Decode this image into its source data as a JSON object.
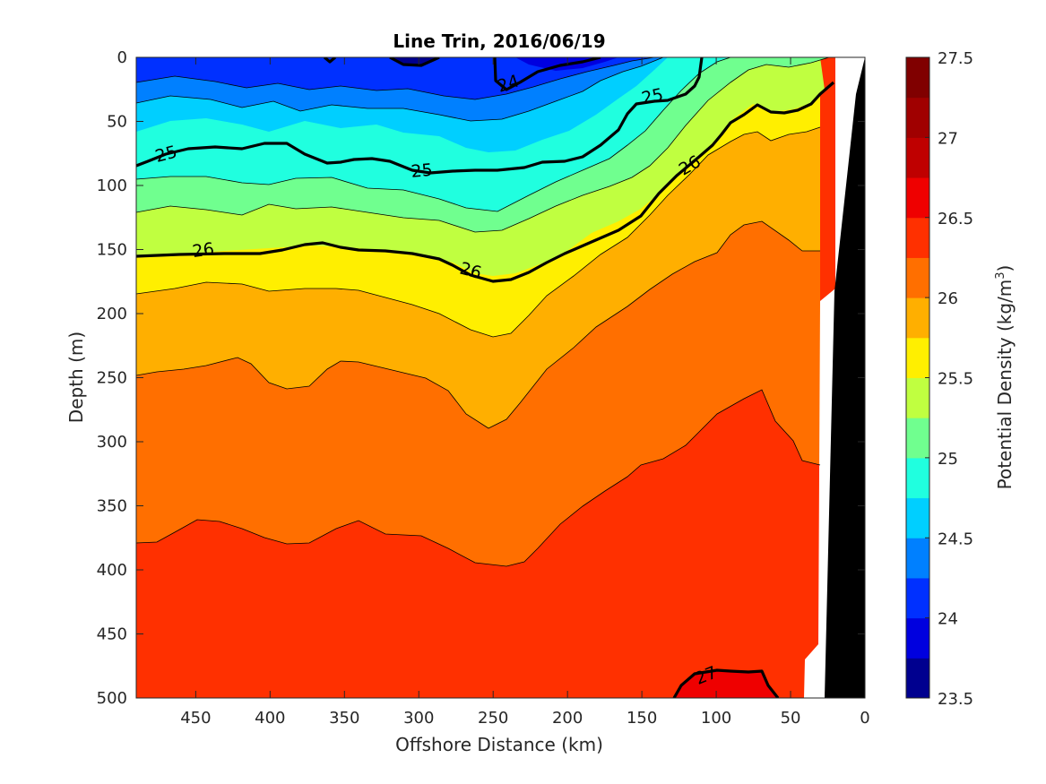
{
  "chart_data": {
    "type": "contour",
    "title": "Line Trin, 2016/06/19",
    "xlabel": "Offshore Distance (km)",
    "ylabel": "Depth (m)",
    "colorbar_label": "Potential Density (kg/m³)",
    "colorbar_label_text": "Potential Density (kg/m",
    "colorbar_label_sup": "3",
    "colorbar_label_close": ")",
    "xlim": [
      490,
      0
    ],
    "ylim": [
      0,
      500
    ],
    "x_reversed": true,
    "y_reversed": true,
    "xticks": [
      "450",
      "400",
      "350",
      "300",
      "250",
      "200",
      "150",
      "100",
      "50",
      "0"
    ],
    "xtick_values": [
      450,
      400,
      350,
      300,
      250,
      200,
      150,
      100,
      50,
      0
    ],
    "yticks": [
      "0",
      "50",
      "100",
      "150",
      "200",
      "250",
      "300",
      "350",
      "400",
      "450",
      "500"
    ],
    "ytick_values": [
      0,
      50,
      100,
      150,
      200,
      250,
      300,
      350,
      400,
      450,
      500
    ],
    "colorbar": {
      "min": 23.5,
      "max": 27.5,
      "step": 0.25,
      "ticks": [
        "23.5",
        "24",
        "24.5",
        "25",
        "25.5",
        "26",
        "26.5",
        "27",
        "27.5"
      ],
      "tick_values": [
        23.5,
        24,
        24.5,
        25,
        25.5,
        26,
        26.5,
        27,
        27.5
      ],
      "colormap": "jet",
      "colors": [
        "#00008F",
        "#0000DF",
        "#0030FF",
        "#0080FF",
        "#00CFFF",
        "#20FFDF",
        "#70FF8F",
        "#C0FF40",
        "#FFEF00",
        "#FFAF00",
        "#FF6F00",
        "#FF3000",
        "#EF0000",
        "#BF0000",
        "#A00000",
        "#800000"
      ]
    },
    "contour_labels": [
      {
        "text": "24",
        "x": 240,
        "y": 20
      },
      {
        "text": "25",
        "x": 143,
        "y": 30
      },
      {
        "text": "25",
        "x": 470,
        "y": 75
      },
      {
        "text": "25",
        "x": 298,
        "y": 88
      },
      {
        "text": "26",
        "x": 118,
        "y": 84
      },
      {
        "text": "26",
        "x": 445,
        "y": 150
      },
      {
        "text": "26",
        "x": 265,
        "y": 166
      },
      {
        "text": "27",
        "x": 107,
        "y": 482
      }
    ],
    "bottom_mask": "black",
    "legend": "none",
    "grid": false
  }
}
